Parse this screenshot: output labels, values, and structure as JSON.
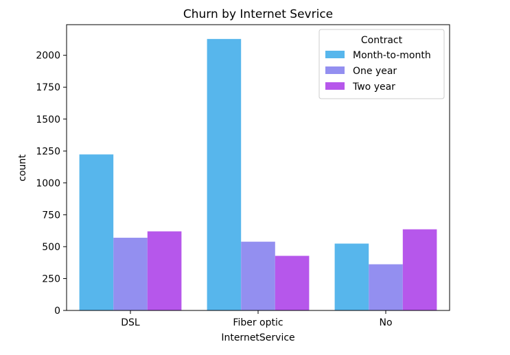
{
  "chart_data": {
    "type": "bar",
    "title": "Churn by Internet Sevrice",
    "xlabel": "InternetService",
    "ylabel": "count",
    "categories": [
      "DSL",
      "Fiber optic",
      "No"
    ],
    "series": [
      {
        "name": "Month-to-month",
        "values": [
          1223,
          2128,
          524
        ],
        "color": "#57b6ec"
      },
      {
        "name": "One year",
        "values": [
          570,
          539,
          362
        ],
        "color": "#938ff0"
      },
      {
        "name": "Two year",
        "values": [
          620,
          428,
          636
        ],
        "color": "#b657eb"
      }
    ],
    "ylim": [
      0,
      2240
    ],
    "yticks": [
      0,
      250,
      500,
      750,
      1000,
      1250,
      1500,
      1750,
      2000
    ],
    "legend": {
      "title": "Contract",
      "placement": "top-right"
    },
    "grid": false
  }
}
